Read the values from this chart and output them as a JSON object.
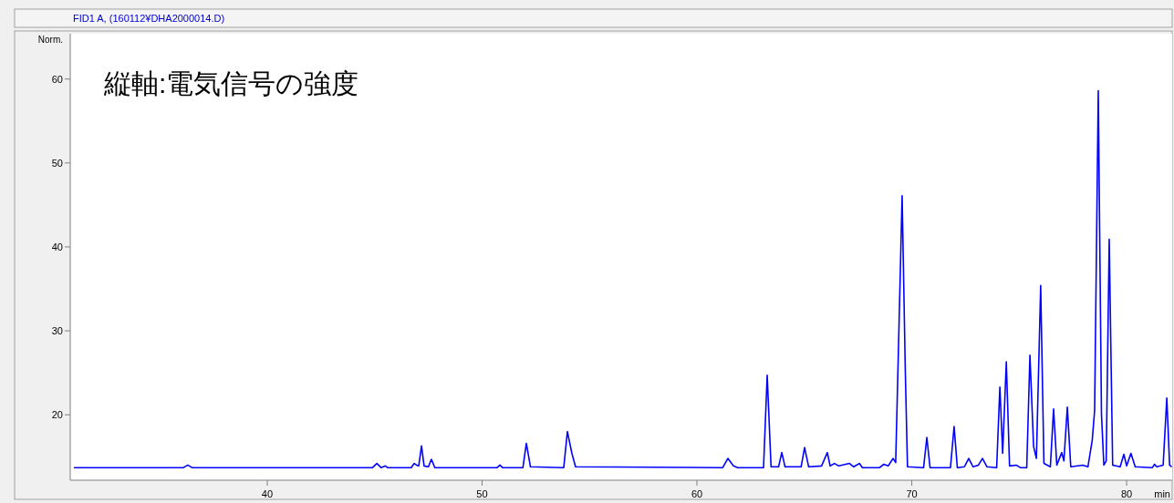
{
  "chart_data": {
    "type": "line",
    "title": "FID1 A, (160112¥DHA2000014.D)",
    "ylabel": "Norm.",
    "xlabel": "min",
    "annotations": [
      "縦軸:電気信号の強度"
    ],
    "x": [
      31.0,
      36.1,
      36.3,
      36.5,
      44.9,
      45.1,
      45.3,
      45.5,
      45.6,
      46.7,
      46.84,
      46.95,
      47.05,
      47.18,
      47.3,
      47.5,
      47.64,
      47.8,
      50.7,
      50.83,
      50.95,
      51.9,
      52.06,
      52.25,
      53.8,
      53.97,
      54.18,
      54.35,
      61.2,
      61.44,
      61.7,
      61.9,
      63.1,
      63.27,
      63.45,
      63.8,
      63.95,
      64.1,
      64.85,
      65.01,
      65.2,
      65.8,
      66.07,
      66.2,
      66.4,
      66.6,
      67.1,
      67.3,
      67.56,
      67.7,
      68.5,
      68.7,
      68.9,
      69.13,
      69.25,
      69.4,
      69.55,
      69.7,
      69.8,
      70.55,
      70.7,
      70.85,
      71.8,
      71.97,
      72.12,
      72.45,
      72.65,
      72.85,
      73.1,
      73.29,
      73.5,
      73.95,
      74.1,
      74.23,
      74.4,
      74.55,
      74.86,
      75.05,
      75.35,
      75.5,
      75.67,
      75.8,
      76.0,
      76.15,
      76.45,
      76.6,
      76.75,
      76.98,
      77.08,
      77.24,
      77.4,
      77.96,
      78.2,
      78.4,
      78.51,
      78.68,
      78.83,
      78.94,
      79.05,
      79.19,
      79.35,
      79.7,
      79.87,
      80.0,
      80.2,
      80.4,
      81.2,
      81.3,
      81.4,
      81.7,
      81.87,
      82.0,
      82.1
    ],
    "series": [
      {
        "color": "#0000ff",
        "values": [
          13.7,
          13.7,
          14.0,
          13.7,
          13.7,
          14.2,
          13.7,
          13.9,
          13.7,
          13.7,
          14.2,
          14.0,
          13.9,
          16.3,
          13.9,
          13.8,
          14.7,
          13.7,
          13.7,
          14.0,
          13.7,
          13.7,
          16.6,
          13.8,
          13.7,
          18.0,
          15.4,
          13.8,
          13.7,
          14.8,
          13.9,
          13.7,
          13.7,
          24.7,
          13.8,
          13.8,
          15.5,
          13.8,
          13.8,
          16.1,
          13.8,
          13.9,
          15.5,
          13.9,
          14.2,
          13.9,
          14.2,
          13.8,
          14.2,
          13.7,
          13.7,
          14.1,
          13.9,
          14.8,
          14.3,
          30.0,
          46.1,
          25.0,
          13.8,
          13.7,
          17.3,
          13.7,
          13.7,
          18.6,
          13.7,
          13.8,
          14.8,
          13.8,
          14.0,
          14.8,
          13.8,
          13.7,
          23.3,
          15.4,
          26.3,
          13.9,
          14.0,
          13.7,
          13.7,
          27.1,
          16.2,
          14.8,
          35.4,
          14.2,
          13.8,
          20.7,
          14.0,
          15.5,
          14.5,
          20.9,
          13.8,
          14.0,
          13.8,
          17.0,
          20.5,
          58.6,
          20.0,
          14.0,
          14.5,
          40.9,
          14.0,
          13.8,
          15.3,
          13.9,
          15.4,
          13.8,
          13.7,
          14.1,
          13.8,
          14.0,
          22.0,
          14.0,
          13.8
        ]
      }
    ],
    "xlim": [
      30.83,
      82.12
    ],
    "ylim": [
      12.2,
      65.4
    ],
    "xticks": [
      40,
      50,
      60,
      70,
      80
    ],
    "yticks": [
      20,
      30,
      40,
      50,
      60
    ]
  }
}
